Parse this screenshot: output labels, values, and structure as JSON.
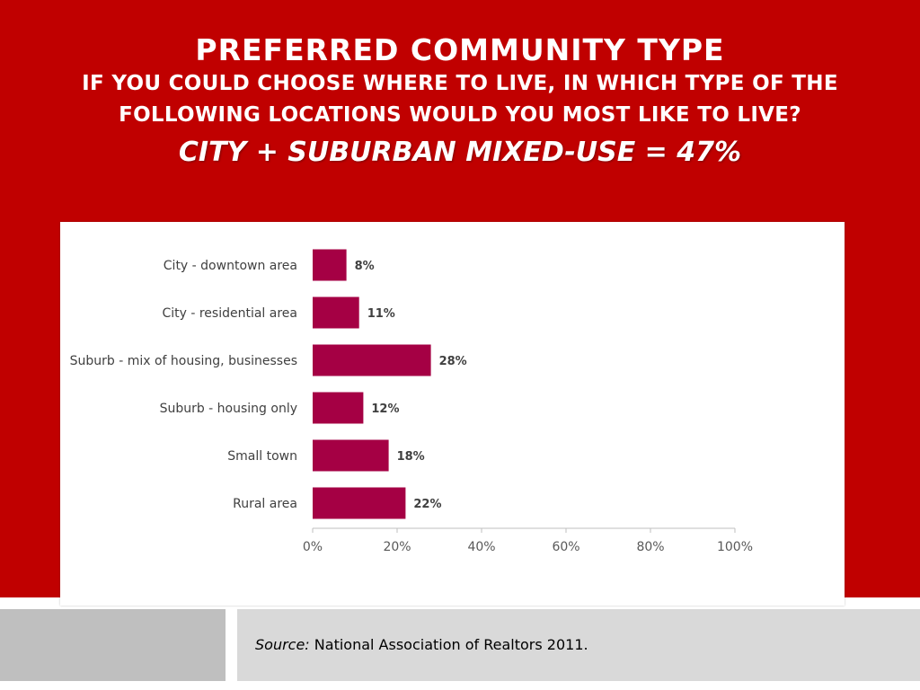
{
  "header": {
    "title": "PREFERRED COMMUNITY TYPE",
    "subtitle_line1": "IF YOU COULD CHOOSE WHERE TO LIVE, IN WHICH TYPE OF THE",
    "subtitle_line2": "FOLLOWING LOCATIONS WOULD YOU MOST LIKE TO LIVE?",
    "highlight": "CITY + SUBURBAN MIXED-USE = 47%"
  },
  "footer": {
    "source_label": "Source:",
    "source_text": "National Association of Realtors 2011."
  },
  "colors": {
    "background_band": "#c00000",
    "bar": "#a50044",
    "footer_left": "#bfbfbf",
    "footer_right": "#d9d9d9"
  },
  "chart_data": {
    "type": "bar",
    "orientation": "horizontal",
    "categories": [
      "City - downtown area",
      "City - residential area",
      "Suburb - mix of housing, businesses",
      "Suburb - housing only",
      "Small town",
      "Rural area"
    ],
    "values": [
      8,
      11,
      28,
      12,
      18,
      22
    ],
    "data_labels": [
      "8%",
      "11%",
      "28%",
      "12%",
      "18%",
      "22%"
    ],
    "xlim": [
      0,
      100
    ],
    "xticks": [
      0,
      20,
      40,
      60,
      80,
      100
    ],
    "xtick_labels": [
      "0%",
      "20%",
      "40%",
      "60%",
      "80%",
      "100%"
    ],
    "grid": false,
    "legend": "none"
  }
}
